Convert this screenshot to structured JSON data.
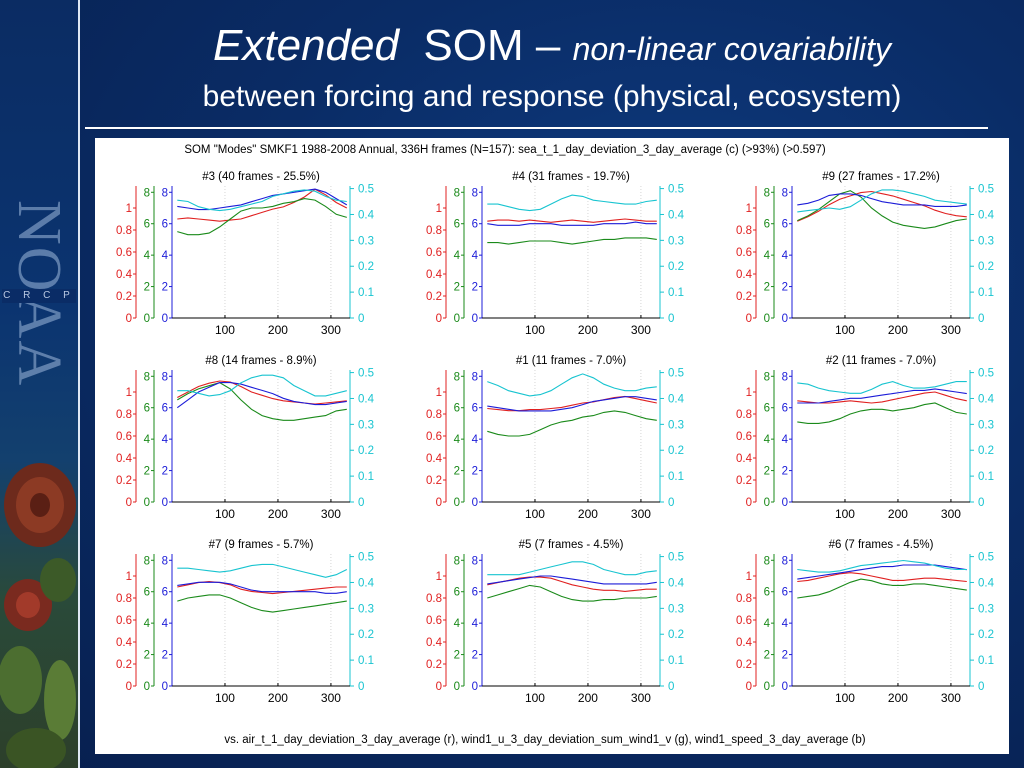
{
  "slide": {
    "title_word1": "Extended",
    "title_word2": "SOM –",
    "title_word3": "non-linear covariability",
    "title_line2": "between forcing and response (physical, ecosystem)"
  },
  "sidebar": {
    "logo_text": "NOAA",
    "crcp_text": "C R C P"
  },
  "colors": {
    "red": "#e02020",
    "green": "#1a8a1a",
    "blue": "#1c1cd8",
    "cyan": "#18c4d0",
    "background": "#0b2f6a"
  },
  "chart_data": {
    "type": "line",
    "title": "SOM \"Modes\" SMKF1 1988-2008 Annual, 336H frames (N=157): sea_t_1_day_deviation_3_day_average (c) (>93%) (>0.597)",
    "footer": "vs. air_t_1_day_deviation_3_day_average (r), wind1_u_3_day_deviation_sum_wind1_v (g), wind1_speed_3_day_average (b)",
    "x": [
      10,
      30,
      50,
      70,
      90,
      110,
      130,
      150,
      170,
      190,
      210,
      230,
      250,
      270,
      290,
      310,
      330
    ],
    "xlim": [
      0,
      336
    ],
    "xticks": [
      "100",
      "200",
      "300"
    ],
    "axes": {
      "red": {
        "ylim": [
          0,
          1.2
        ],
        "ticks": [
          "0",
          "0.2",
          "0.4",
          "0.6",
          "0.8",
          "1"
        ]
      },
      "green": {
        "ylim": [
          0,
          8.4
        ],
        "ticks": [
          "0",
          "2",
          "4",
          "6",
          "8"
        ]
      },
      "blue": {
        "ylim": [
          0,
          8.4
        ],
        "ticks": [
          "0",
          "2",
          "4",
          "6",
          "8"
        ]
      },
      "cyan": {
        "ylim": [
          0,
          0.51
        ],
        "ticks": [
          "0",
          "0.1",
          "0.2",
          "0.3",
          "0.4",
          "0.5"
        ]
      }
    },
    "panels": [
      {
        "title": "#3 (40 frames - 25.5%)",
        "series": [
          {
            "color": "red",
            "values": [
              0.9,
              0.91,
              0.9,
              0.89,
              0.88,
              0.89,
              0.9,
              0.93,
              0.96,
              0.99,
              1.01,
              1.05,
              1.1,
              1.17,
              1.12,
              1.05,
              1.0
            ]
          },
          {
            "color": "green",
            "values": [
              5.5,
              5.3,
              5.3,
              5.4,
              5.8,
              6.3,
              6.8,
              7.0,
              7.0,
              7.1,
              7.3,
              7.4,
              7.6,
              7.5,
              7.1,
              6.6,
              6.4
            ]
          },
          {
            "color": "blue",
            "values": [
              7.1,
              7.0,
              6.9,
              6.9,
              7.0,
              7.1,
              7.2,
              7.4,
              7.6,
              7.8,
              7.9,
              8.0,
              8.1,
              8.2,
              8.0,
              7.6,
              7.2
            ]
          },
          {
            "color": "cyan",
            "values": [
              0.455,
              0.45,
              0.43,
              0.42,
              0.415,
              0.42,
              0.43,
              0.44,
              0.45,
              0.47,
              0.48,
              0.49,
              0.495,
              0.49,
              0.47,
              0.455,
              0.45
            ]
          }
        ]
      },
      {
        "title": "#4 (31 frames - 19.7%)",
        "series": [
          {
            "color": "red",
            "values": [
              0.88,
              0.89,
              0.89,
              0.88,
              0.89,
              0.88,
              0.87,
              0.88,
              0.89,
              0.88,
              0.87,
              0.88,
              0.89,
              0.9,
              0.89,
              0.88,
              0.88
            ]
          },
          {
            "color": "green",
            "values": [
              4.8,
              4.8,
              4.7,
              4.8,
              4.9,
              4.9,
              4.9,
              4.8,
              4.7,
              4.8,
              4.9,
              5.0,
              5.0,
              5.1,
              5.1,
              5.1,
              5.0
            ]
          },
          {
            "color": "blue",
            "values": [
              6.0,
              5.9,
              5.9,
              5.9,
              6.0,
              6.0,
              6.0,
              5.9,
              5.9,
              5.9,
              5.9,
              6.0,
              6.0,
              6.0,
              6.1,
              6.0,
              6.0
            ]
          },
          {
            "color": "cyan",
            "values": [
              0.44,
              0.44,
              0.43,
              0.42,
              0.415,
              0.42,
              0.44,
              0.46,
              0.475,
              0.47,
              0.455,
              0.45,
              0.445,
              0.44,
              0.44,
              0.45,
              0.455
            ]
          }
        ]
      },
      {
        "title": "#9 (27 frames - 17.2%)",
        "series": [
          {
            "color": "red",
            "values": [
              0.88,
              0.92,
              0.97,
              1.03,
              1.08,
              1.11,
              1.14,
              1.15,
              1.13,
              1.11,
              1.08,
              1.05,
              1.02,
              0.98,
              0.95,
              0.93,
              0.92
            ]
          },
          {
            "color": "green",
            "values": [
              6.2,
              6.5,
              6.9,
              7.4,
              7.9,
              8.1,
              7.7,
              7.0,
              6.5,
              6.1,
              5.9,
              5.8,
              5.7,
              5.8,
              6.0,
              6.2,
              6.3
            ]
          },
          {
            "color": "blue",
            "values": [
              7.2,
              7.3,
              7.5,
              7.8,
              7.9,
              7.9,
              7.8,
              7.6,
              7.4,
              7.3,
              7.2,
              7.2,
              7.2,
              7.1,
              7.1,
              7.1,
              7.2
            ]
          },
          {
            "color": "cyan",
            "values": [
              0.41,
              0.415,
              0.42,
              0.425,
              0.42,
              0.43,
              0.455,
              0.48,
              0.495,
              0.495,
              0.49,
              0.48,
              0.47,
              0.455,
              0.45,
              0.445,
              0.44
            ]
          }
        ]
      },
      {
        "title": "#8 (14 frames - 8.9%)",
        "series": [
          {
            "color": "red",
            "values": [
              0.95,
              1.0,
              1.05,
              1.08,
              1.1,
              1.09,
              1.05,
              1.0,
              0.97,
              0.94,
              0.92,
              0.91,
              0.9,
              0.89,
              0.9,
              0.91,
              0.92
            ]
          },
          {
            "color": "green",
            "values": [
              6.5,
              6.9,
              7.2,
              7.4,
              7.6,
              7.2,
              6.5,
              5.9,
              5.5,
              5.3,
              5.2,
              5.2,
              5.3,
              5.4,
              5.5,
              5.8,
              5.9
            ]
          },
          {
            "color": "blue",
            "values": [
              6.0,
              6.5,
              7.0,
              7.3,
              7.6,
              7.6,
              7.5,
              7.3,
              7.1,
              6.9,
              6.6,
              6.4,
              6.3,
              6.2,
              6.2,
              6.3,
              6.4
            ]
          },
          {
            "color": "cyan",
            "values": [
              0.43,
              0.43,
              0.42,
              0.41,
              0.415,
              0.43,
              0.46,
              0.48,
              0.49,
              0.49,
              0.48,
              0.45,
              0.43,
              0.41,
              0.41,
              0.42,
              0.43
            ]
          }
        ]
      },
      {
        "title": "#1 (11 frames - 7.0%)",
        "series": [
          {
            "color": "red",
            "values": [
              0.85,
              0.84,
              0.83,
              0.83,
              0.84,
              0.84,
              0.85,
              0.86,
              0.88,
              0.9,
              0.91,
              0.93,
              0.95,
              0.96,
              0.94,
              0.92,
              0.9
            ]
          },
          {
            "color": "green",
            "values": [
              4.5,
              4.3,
              4.2,
              4.2,
              4.3,
              4.6,
              4.9,
              5.1,
              5.2,
              5.4,
              5.5,
              5.7,
              5.8,
              5.7,
              5.5,
              5.3,
              5.2
            ]
          },
          {
            "color": "blue",
            "values": [
              6.1,
              6.0,
              5.9,
              5.8,
              5.8,
              5.8,
              5.8,
              5.9,
              6.0,
              6.2,
              6.4,
              6.5,
              6.6,
              6.7,
              6.7,
              6.6,
              6.5
            ]
          },
          {
            "color": "cyan",
            "values": [
              0.465,
              0.45,
              0.43,
              0.42,
              0.41,
              0.415,
              0.43,
              0.455,
              0.48,
              0.495,
              0.48,
              0.455,
              0.44,
              0.43,
              0.43,
              0.44,
              0.445
            ]
          }
        ]
      },
      {
        "title": "#2 (11 frames - 7.0%)",
        "series": [
          {
            "color": "red",
            "values": [
              0.92,
              0.91,
              0.9,
              0.9,
              0.91,
              0.92,
              0.91,
              0.9,
              0.91,
              0.93,
              0.95,
              0.97,
              0.99,
              1.0,
              0.97,
              0.94,
              0.92
            ]
          },
          {
            "color": "green",
            "values": [
              5.1,
              5.0,
              5.0,
              5.1,
              5.3,
              5.6,
              5.8,
              5.9,
              5.9,
              5.8,
              5.9,
              6.0,
              6.2,
              6.3,
              6.0,
              5.7,
              5.6
            ]
          },
          {
            "color": "blue",
            "values": [
              6.3,
              6.3,
              6.3,
              6.4,
              6.5,
              6.6,
              6.6,
              6.7,
              6.8,
              6.9,
              7.0,
              7.1,
              7.1,
              7.2,
              7.1,
              7.0,
              6.9
            ]
          },
          {
            "color": "cyan",
            "values": [
              0.46,
              0.455,
              0.44,
              0.43,
              0.425,
              0.42,
              0.42,
              0.435,
              0.455,
              0.465,
              0.45,
              0.44,
              0.44,
              0.445,
              0.455,
              0.465,
              0.465
            ]
          }
        ]
      },
      {
        "title": "#7 (9 frames - 5.7%)",
        "series": [
          {
            "color": "red",
            "values": [
              0.9,
              0.92,
              0.94,
              0.95,
              0.94,
              0.92,
              0.88,
              0.86,
              0.85,
              0.84,
              0.85,
              0.86,
              0.87,
              0.88,
              0.89,
              0.9,
              0.9
            ]
          },
          {
            "color": "green",
            "values": [
              5.4,
              5.6,
              5.7,
              5.8,
              5.8,
              5.6,
              5.3,
              5.0,
              4.8,
              4.7,
              4.8,
              4.9,
              5.0,
              5.1,
              5.2,
              5.3,
              5.4
            ]
          },
          {
            "color": "blue",
            "values": [
              6.4,
              6.5,
              6.6,
              6.6,
              6.6,
              6.5,
              6.3,
              6.1,
              6.0,
              6.0,
              6.0,
              6.0,
              6.0,
              6.0,
              5.9,
              5.9,
              6.0
            ]
          },
          {
            "color": "cyan",
            "values": [
              0.455,
              0.455,
              0.45,
              0.445,
              0.44,
              0.445,
              0.455,
              0.465,
              0.47,
              0.47,
              0.46,
              0.45,
              0.44,
              0.43,
              0.42,
              0.43,
              0.45
            ]
          }
        ]
      },
      {
        "title": "#5 (7 frames - 4.5%)",
        "series": [
          {
            "color": "red",
            "values": [
              0.92,
              0.94,
              0.96,
              0.98,
              0.99,
              0.99,
              0.98,
              0.95,
              0.92,
              0.9,
              0.88,
              0.87,
              0.87,
              0.86,
              0.87,
              0.88,
              0.88
            ]
          },
          {
            "color": "green",
            "values": [
              5.6,
              5.8,
              6.0,
              6.2,
              6.4,
              6.3,
              6.0,
              5.7,
              5.5,
              5.4,
              5.4,
              5.5,
              5.5,
              5.6,
              5.6,
              5.6,
              5.7
            ]
          },
          {
            "color": "blue",
            "values": [
              6.5,
              6.6,
              6.7,
              6.8,
              6.9,
              7.0,
              7.0,
              6.9,
              6.8,
              6.7,
              6.6,
              6.5,
              6.5,
              6.5,
              6.5,
              6.5,
              6.6
            ]
          },
          {
            "color": "cyan",
            "values": [
              0.43,
              0.43,
              0.43,
              0.43,
              0.44,
              0.45,
              0.46,
              0.47,
              0.48,
              0.48,
              0.47,
              0.45,
              0.44,
              0.43,
              0.43,
              0.44,
              0.445
            ]
          }
        ]
      },
      {
        "title": "#6 (7 frames - 4.5%)",
        "series": [
          {
            "color": "red",
            "values": [
              0.95,
              0.96,
              0.98,
              1.0,
              1.02,
              1.03,
              1.02,
              1.0,
              0.98,
              0.96,
              0.96,
              0.97,
              0.98,
              0.98,
              0.97,
              0.96,
              0.95
            ]
          },
          {
            "color": "green",
            "values": [
              5.6,
              5.7,
              5.8,
              6.0,
              6.3,
              6.6,
              6.8,
              6.7,
              6.5,
              6.4,
              6.4,
              6.5,
              6.5,
              6.4,
              6.3,
              6.2,
              6.1
            ]
          },
          {
            "color": "blue",
            "values": [
              6.8,
              6.9,
              7.0,
              7.1,
              7.2,
              7.3,
              7.4,
              7.5,
              7.6,
              7.6,
              7.7,
              7.7,
              7.7,
              7.7,
              7.6,
              7.5,
              7.4
            ]
          },
          {
            "color": "cyan",
            "values": [
              0.45,
              0.445,
              0.44,
              0.44,
              0.445,
              0.455,
              0.465,
              0.47,
              0.475,
              0.48,
              0.485,
              0.48,
              0.475,
              0.465,
              0.455,
              0.45,
              0.45
            ]
          }
        ]
      }
    ]
  }
}
